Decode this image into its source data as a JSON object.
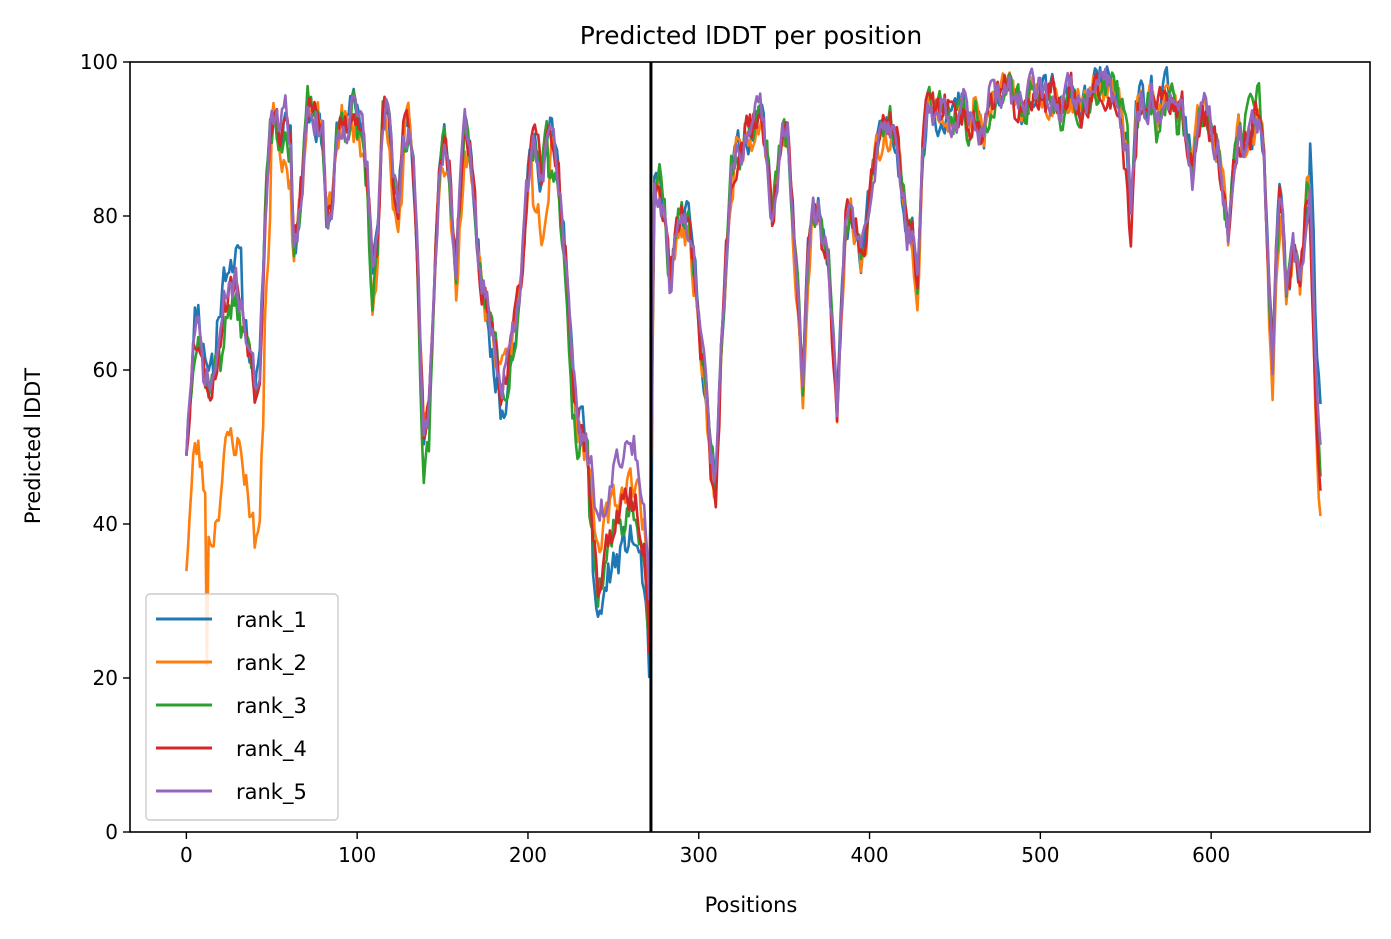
{
  "chart_data": {
    "type": "line",
    "title": "Predicted lDDT per position",
    "xlabel": "Positions",
    "ylabel": "Predicted lDDT",
    "xlim": [
      -33,
      693
    ],
    "ylim": [
      0,
      100
    ],
    "xticks": [
      0,
      100,
      200,
      300,
      400,
      500,
      600
    ],
    "yticks": [
      0,
      20,
      40,
      60,
      80,
      100
    ],
    "grid": false,
    "legend_position": "lower-left",
    "vline_x": 272,
    "vline_color": "#000000",
    "x_step": 1,
    "x_count": 665,
    "base_curve": [
      [
        0,
        50
      ],
      [
        4,
        63
      ],
      [
        7,
        65
      ],
      [
        10,
        60
      ],
      [
        13,
        58
      ],
      [
        16,
        59
      ],
      [
        19,
        63
      ],
      [
        22,
        68
      ],
      [
        25,
        71
      ],
      [
        28,
        71
      ],
      [
        31,
        70
      ],
      [
        34,
        67
      ],
      [
        37,
        63
      ],
      [
        40,
        58
      ],
      [
        43,
        60
      ],
      [
        46,
        80
      ],
      [
        49,
        92
      ],
      [
        52,
        93
      ],
      [
        55,
        90
      ],
      [
        58,
        94
      ],
      [
        61,
        90
      ],
      [
        63,
        77
      ],
      [
        66,
        80
      ],
      [
        69,
        88
      ],
      [
        71,
        94
      ],
      [
        74,
        93
      ],
      [
        77,
        92
      ],
      [
        80,
        90
      ],
      [
        82,
        81
      ],
      [
        85,
        80
      ],
      [
        88,
        90
      ],
      [
        91,
        93
      ],
      [
        94,
        92
      ],
      [
        97,
        94
      ],
      [
        100,
        94
      ],
      [
        103,
        92
      ],
      [
        106,
        86
      ],
      [
        109,
        72
      ],
      [
        112,
        78
      ],
      [
        115,
        92
      ],
      [
        118,
        95
      ],
      [
        121,
        85
      ],
      [
        124,
        82
      ],
      [
        127,
        90
      ],
      [
        130,
        92
      ],
      [
        133,
        85
      ],
      [
        136,
        70
      ],
      [
        139,
        51
      ],
      [
        142,
        55
      ],
      [
        145,
        70
      ],
      [
        148,
        85
      ],
      [
        151,
        90
      ],
      [
        154,
        86
      ],
      [
        156,
        78
      ],
      [
        158,
        73
      ],
      [
        160,
        82
      ],
      [
        163,
        91
      ],
      [
        166,
        88
      ],
      [
        169,
        80
      ],
      [
        172,
        73
      ],
      [
        175,
        69
      ],
      [
        178,
        66
      ],
      [
        181,
        63
      ],
      [
        184,
        58
      ],
      [
        187,
        60
      ],
      [
        190,
        63
      ],
      [
        193,
        66
      ],
      [
        196,
        72
      ],
      [
        199,
        82
      ],
      [
        202,
        89
      ],
      [
        205,
        89
      ],
      [
        208,
        85
      ],
      [
        211,
        89
      ],
      [
        214,
        91
      ],
      [
        217,
        87
      ],
      [
        220,
        80
      ],
      [
        223,
        72
      ],
      [
        226,
        60
      ],
      [
        229,
        53
      ],
      [
        232,
        52
      ],
      [
        235,
        49
      ],
      [
        238,
        44
      ],
      [
        241,
        37
      ],
      [
        244,
        40
      ],
      [
        247,
        43
      ],
      [
        250,
        45
      ],
      [
        253,
        45
      ],
      [
        256,
        47
      ],
      [
        259,
        48
      ],
      [
        262,
        48
      ],
      [
        265,
        46
      ],
      [
        268,
        42
      ],
      [
        271,
        30
      ],
      [
        272,
        46
      ],
      [
        274,
        83
      ],
      [
        277,
        84
      ],
      [
        280,
        80
      ],
      [
        283,
        72
      ],
      [
        286,
        76
      ],
      [
        289,
        80
      ],
      [
        292,
        80
      ],
      [
        295,
        78
      ],
      [
        298,
        72
      ],
      [
        301,
        64
      ],
      [
        304,
        58
      ],
      [
        307,
        48
      ],
      [
        310,
        46
      ],
      [
        313,
        62
      ],
      [
        316,
        75
      ],
      [
        319,
        85
      ],
      [
        322,
        88
      ],
      [
        325,
        89
      ],
      [
        328,
        91
      ],
      [
        331,
        91
      ],
      [
        334,
        93
      ],
      [
        337,
        93
      ],
      [
        340,
        88
      ],
      [
        343,
        80
      ],
      [
        346,
        86
      ],
      [
        349,
        91
      ],
      [
        352,
        90
      ],
      [
        355,
        80
      ],
      [
        358,
        70
      ],
      [
        361,
        57
      ],
      [
        364,
        75
      ],
      [
        367,
        80
      ],
      [
        370,
        81
      ],
      [
        373,
        76
      ],
      [
        376,
        73
      ],
      [
        378,
        65
      ],
      [
        381,
        55
      ],
      [
        383,
        65
      ],
      [
        386,
        79
      ],
      [
        389,
        80
      ],
      [
        392,
        78
      ],
      [
        395,
        74
      ],
      [
        398,
        78
      ],
      [
        401,
        85
      ],
      [
        404,
        88
      ],
      [
        407,
        90
      ],
      [
        410,
        91
      ],
      [
        413,
        92
      ],
      [
        416,
        90
      ],
      [
        419,
        84
      ],
      [
        422,
        78
      ],
      [
        425,
        78
      ],
      [
        428,
        70
      ],
      [
        431,
        88
      ],
      [
        434,
        95
      ],
      [
        437,
        94
      ],
      [
        440,
        93
      ],
      [
        443,
        94
      ],
      [
        446,
        94
      ],
      [
        449,
        93
      ],
      [
        452,
        94
      ],
      [
        455,
        94
      ],
      [
        458,
        91
      ],
      [
        461,
        94
      ],
      [
        464,
        92
      ],
      [
        467,
        90
      ],
      [
        470,
        94
      ],
      [
        473,
        96
      ],
      [
        476,
        95
      ],
      [
        479,
        96
      ],
      [
        482,
        96
      ],
      [
        485,
        94
      ],
      [
        488,
        95
      ],
      [
        491,
        94
      ],
      [
        494,
        96
      ],
      [
        497,
        96
      ],
      [
        500,
        96
      ],
      [
        503,
        95
      ],
      [
        506,
        96
      ],
      [
        509,
        96
      ],
      [
        512,
        94
      ],
      [
        515,
        95
      ],
      [
        518,
        96
      ],
      [
        521,
        95
      ],
      [
        524,
        94
      ],
      [
        527,
        95
      ],
      [
        530,
        96
      ],
      [
        533,
        97
      ],
      [
        536,
        97
      ],
      [
        539,
        97
      ],
      [
        542,
        96
      ],
      [
        545,
        95
      ],
      [
        548,
        93
      ],
      [
        551,
        88
      ],
      [
        553,
        80
      ],
      [
        556,
        92
      ],
      [
        559,
        95
      ],
      [
        562,
        94
      ],
      [
        565,
        96
      ],
      [
        568,
        92
      ],
      [
        571,
        94
      ],
      [
        574,
        96
      ],
      [
        577,
        95
      ],
      [
        580,
        92
      ],
      [
        583,
        94
      ],
      [
        586,
        90
      ],
      [
        589,
        86
      ],
      [
        592,
        92
      ],
      [
        595,
        94
      ],
      [
        598,
        93
      ],
      [
        601,
        90
      ],
      [
        604,
        88
      ],
      [
        607,
        83
      ],
      [
        610,
        78
      ],
      [
        613,
        86
      ],
      [
        616,
        91
      ],
      [
        619,
        89
      ],
      [
        622,
        90
      ],
      [
        625,
        92
      ],
      [
        628,
        93
      ],
      [
        631,
        88
      ],
      [
        634,
        70
      ],
      [
        636,
        60
      ],
      [
        638,
        75
      ],
      [
        640,
        82
      ],
      [
        642,
        78
      ],
      [
        644,
        70
      ],
      [
        646,
        72
      ],
      [
        648,
        75
      ],
      [
        650,
        73
      ],
      [
        652,
        70
      ],
      [
        654,
        76
      ],
      [
        656,
        82
      ],
      [
        658,
        84
      ],
      [
        660,
        70
      ],
      [
        662,
        55
      ],
      [
        664,
        48
      ]
    ],
    "series": [
      {
        "name": "rank_1",
        "color": "#1f77b4",
        "jitter": 2.2,
        "seed": 11,
        "adjust": [
          [
            5,
            15,
            3
          ],
          [
            18,
            32,
            4
          ],
          [
            238,
            271,
            -10
          ],
          [
            272,
            272,
            -26
          ],
          [
            176,
            188,
            -3
          ],
          [
            658,
            664,
            6
          ]
        ]
      },
      {
        "name": "rank_2",
        "color": "#ff7f0e",
        "jitter": 2.2,
        "seed": 23,
        "adjust": [
          [
            0,
            12,
            -15
          ],
          [
            12,
            45,
            -20
          ],
          [
            46,
            49,
            -12
          ],
          [
            56,
            62,
            -5
          ],
          [
            95,
            112,
            -3
          ],
          [
            117,
            127,
            -4
          ],
          [
            151,
            165,
            -3
          ],
          [
            203,
            212,
            -6
          ],
          [
            240,
            271,
            -2
          ],
          [
            290,
            320,
            -2
          ],
          [
            355,
            365,
            -3
          ],
          [
            425,
            432,
            -2
          ],
          [
            632,
            640,
            -3
          ],
          [
            658,
            664,
            -6
          ]
        ]
      },
      {
        "name": "rank_3",
        "color": "#2ca02c",
        "jitter": 2.2,
        "seed": 37,
        "adjust": [
          [
            20,
            35,
            -3
          ],
          [
            50,
            60,
            -2
          ],
          [
            100,
            112,
            -4
          ],
          [
            136,
            142,
            -4
          ],
          [
            186,
            198,
            -2
          ],
          [
            212,
            230,
            -4
          ],
          [
            236,
            271,
            -6
          ],
          [
            548,
            560,
            1
          ],
          [
            620,
            630,
            2
          ]
        ]
      },
      {
        "name": "rank_4",
        "color": "#d62728",
        "jitter": 2.2,
        "seed": 53,
        "adjust": [
          [
            20,
            35,
            0
          ],
          [
            236,
            271,
            -5
          ],
          [
            307,
            312,
            -2
          ],
          [
            548,
            556,
            -3
          ],
          [
            636,
            640,
            3
          ],
          [
            658,
            664,
            -4
          ]
        ]
      },
      {
        "name": "rank_5",
        "color": "#9467bd",
        "jitter": 2.2,
        "seed": 71,
        "adjust": [
          [
            236,
            271,
            2
          ],
          [
            0,
            4,
            0
          ]
        ]
      }
    ]
  }
}
